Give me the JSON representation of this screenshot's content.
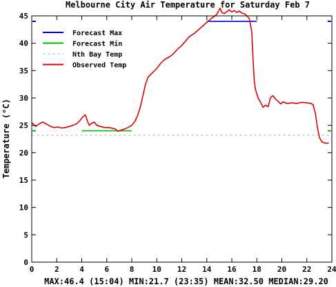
{
  "chart_data": {
    "type": "line",
    "title": "Melbourne City Air Temperature for Saturday Feb 7",
    "xlabel": "",
    "ylabel": "Temperature (°C)",
    "xlim": [
      0,
      24
    ],
    "ylim": [
      0,
      45
    ],
    "x_ticks": [
      0,
      2,
      4,
      6,
      8,
      10,
      12,
      14,
      16,
      18,
      20,
      22,
      24
    ],
    "y_ticks": [
      0,
      5,
      10,
      15,
      20,
      25,
      30,
      35,
      40,
      45
    ],
    "grid": false,
    "legend_position": "top-left",
    "series": [
      {
        "name": "Forecast Max",
        "color": "#0000cc",
        "style": "solid",
        "points": [
          [
            14.0,
            44.0
          ],
          [
            18.0,
            44.0
          ]
        ],
        "edge_marks_y": 44.0
      },
      {
        "name": "Forecast Min",
        "color": "#00bb00",
        "style": "solid",
        "points": [
          [
            4.0,
            24.0
          ],
          [
            8.0,
            24.0
          ]
        ],
        "edge_marks_y": 24.0
      },
      {
        "name": "Nth Bay Temp",
        "color": "#bbbbbb",
        "style": "dashed",
        "points": [
          [
            0.0,
            23.2
          ],
          [
            24.0,
            23.2
          ]
        ]
      },
      {
        "name": "Observed Temp",
        "color": "#dd0000",
        "style": "solid",
        "points": [
          [
            0.0,
            25.5
          ],
          [
            0.15,
            25.2
          ],
          [
            0.3,
            24.8
          ],
          [
            0.5,
            25.1
          ],
          [
            0.7,
            25.4
          ],
          [
            0.9,
            25.6
          ],
          [
            1.2,
            25.2
          ],
          [
            1.5,
            24.8
          ],
          [
            1.8,
            24.6
          ],
          [
            2.1,
            24.7
          ],
          [
            2.4,
            24.5
          ],
          [
            2.7,
            24.6
          ],
          [
            3.0,
            24.8
          ],
          [
            3.3,
            25.0
          ],
          [
            3.6,
            25.3
          ],
          [
            3.9,
            26.0
          ],
          [
            4.1,
            26.6
          ],
          [
            4.3,
            26.9
          ],
          [
            4.45,
            25.8
          ],
          [
            4.6,
            25.0
          ],
          [
            4.8,
            25.4
          ],
          [
            5.0,
            25.6
          ],
          [
            5.2,
            25.0
          ],
          [
            5.5,
            24.8
          ],
          [
            5.8,
            24.6
          ],
          [
            6.1,
            24.6
          ],
          [
            6.4,
            24.5
          ],
          [
            6.7,
            24.3
          ],
          [
            6.9,
            23.9
          ],
          [
            7.1,
            24.1
          ],
          [
            7.4,
            24.3
          ],
          [
            7.7,
            24.6
          ],
          [
            8.0,
            25.0
          ],
          [
            8.3,
            25.9
          ],
          [
            8.5,
            27.0
          ],
          [
            8.7,
            28.5
          ],
          [
            8.9,
            30.5
          ],
          [
            9.1,
            32.5
          ],
          [
            9.3,
            33.8
          ],
          [
            9.6,
            34.5
          ],
          [
            10.0,
            35.4
          ],
          [
            10.3,
            36.3
          ],
          [
            10.6,
            37.0
          ],
          [
            11.0,
            37.5
          ],
          [
            11.3,
            38.0
          ],
          [
            11.6,
            38.8
          ],
          [
            12.0,
            39.6
          ],
          [
            12.3,
            40.4
          ],
          [
            12.6,
            41.2
          ],
          [
            13.0,
            41.8
          ],
          [
            13.3,
            42.4
          ],
          [
            13.6,
            43.0
          ],
          [
            13.9,
            43.6
          ],
          [
            14.2,
            44.2
          ],
          [
            14.4,
            44.6
          ],
          [
            14.6,
            44.9
          ],
          [
            14.8,
            45.3
          ],
          [
            15.07,
            46.4
          ],
          [
            15.2,
            45.6
          ],
          [
            15.4,
            45.4
          ],
          [
            15.6,
            45.8
          ],
          [
            15.8,
            46.1
          ],
          [
            16.0,
            45.7
          ],
          [
            16.2,
            46.0
          ],
          [
            16.4,
            45.6
          ],
          [
            16.6,
            45.9
          ],
          [
            16.8,
            45.5
          ],
          [
            17.0,
            45.4
          ],
          [
            17.2,
            45.0
          ],
          [
            17.4,
            44.5
          ],
          [
            17.6,
            42.0
          ],
          [
            17.7,
            37.0
          ],
          [
            17.8,
            33.0
          ],
          [
            17.9,
            31.5
          ],
          [
            18.1,
            30.0
          ],
          [
            18.3,
            29.2
          ],
          [
            18.5,
            28.3
          ],
          [
            18.7,
            28.7
          ],
          [
            18.9,
            28.4
          ],
          [
            19.1,
            30.1
          ],
          [
            19.3,
            30.4
          ],
          [
            19.5,
            29.8
          ],
          [
            19.7,
            29.4
          ],
          [
            19.9,
            28.9
          ],
          [
            20.1,
            29.3
          ],
          [
            20.4,
            29.0
          ],
          [
            20.8,
            29.1
          ],
          [
            21.2,
            29.0
          ],
          [
            21.6,
            29.2
          ],
          [
            22.0,
            29.1
          ],
          [
            22.3,
            29.0
          ],
          [
            22.5,
            28.8
          ],
          [
            22.7,
            27.0
          ],
          [
            22.85,
            24.5
          ],
          [
            23.0,
            22.8
          ],
          [
            23.2,
            22.0
          ],
          [
            23.4,
            21.8
          ],
          [
            23.58,
            21.7
          ],
          [
            23.75,
            21.8
          ]
        ]
      }
    ],
    "footer": "MAX:46.4 (15:04) MIN:21.7 (23:35) MEAN:32.50 MEDIAN:29.20"
  }
}
